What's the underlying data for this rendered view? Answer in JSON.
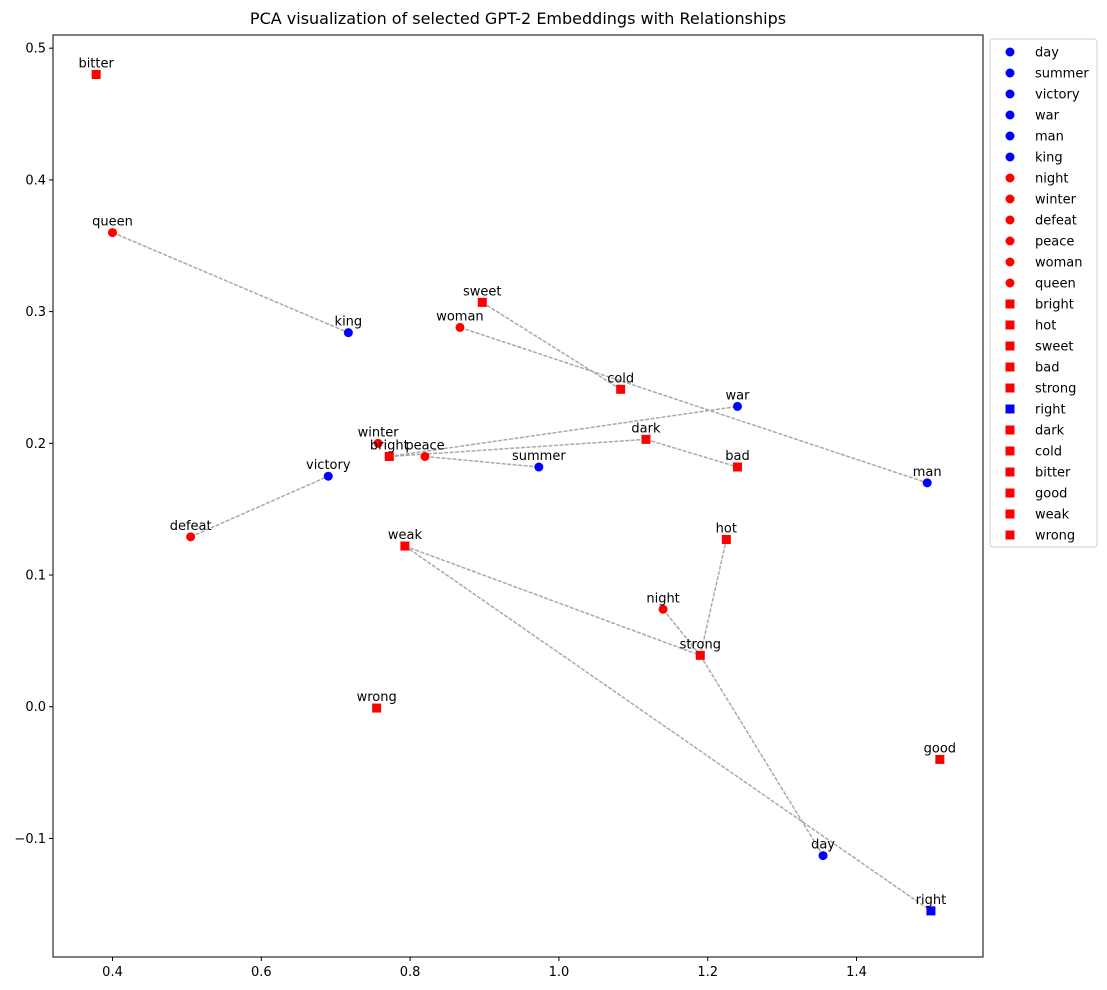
{
  "chart_data": {
    "type": "scatter",
    "title": "PCA visualization of selected GPT-2 Embeddings with Relationships",
    "xlabel": "",
    "ylabel": "",
    "xlim": [
      0.32,
      1.57
    ],
    "ylim": [
      -0.19,
      0.51
    ],
    "xticks": [
      0.4,
      0.6,
      0.8,
      1.0,
      1.2,
      1.4
    ],
    "xtick_labels": [
      "0.4",
      "0.6",
      "0.8",
      "1.0",
      "1.2",
      "1.4"
    ],
    "yticks": [
      -0.1,
      0.0,
      0.1,
      0.2,
      0.3,
      0.4,
      0.5
    ],
    "ytick_labels": [
      "−0.1",
      "0.0",
      "0.1",
      "0.2",
      "0.3",
      "0.4",
      "0.5"
    ],
    "grid": false,
    "legend_position": "outside-top-right",
    "colors": {
      "blue": "#0000ff",
      "red": "#ff0000",
      "line": "#a9a9a9"
    },
    "points": [
      {
        "word": "day",
        "x": 1.355,
        "y": -0.113,
        "color": "blue",
        "marker": "circle"
      },
      {
        "word": "summer",
        "x": 0.973,
        "y": 0.182,
        "color": "blue",
        "marker": "circle"
      },
      {
        "word": "victory",
        "x": 0.69,
        "y": 0.175,
        "color": "blue",
        "marker": "circle"
      },
      {
        "word": "war",
        "x": 1.24,
        "y": 0.228,
        "color": "blue",
        "marker": "circle"
      },
      {
        "word": "man",
        "x": 1.495,
        "y": 0.17,
        "color": "blue",
        "marker": "circle"
      },
      {
        "word": "king",
        "x": 0.717,
        "y": 0.284,
        "color": "blue",
        "marker": "circle"
      },
      {
        "word": "night",
        "x": 1.14,
        "y": 0.074,
        "color": "red",
        "marker": "circle"
      },
      {
        "word": "winter",
        "x": 0.757,
        "y": 0.2,
        "color": "red",
        "marker": "circle"
      },
      {
        "word": "defeat",
        "x": 0.505,
        "y": 0.129,
        "color": "red",
        "marker": "circle"
      },
      {
        "word": "peace",
        "x": 0.82,
        "y": 0.19,
        "color": "red",
        "marker": "circle"
      },
      {
        "word": "woman",
        "x": 0.867,
        "y": 0.288,
        "color": "red",
        "marker": "circle"
      },
      {
        "word": "queen",
        "x": 0.4,
        "y": 0.36,
        "color": "red",
        "marker": "circle"
      },
      {
        "word": "bright",
        "x": 0.772,
        "y": 0.19,
        "color": "red",
        "marker": "square"
      },
      {
        "word": "hot",
        "x": 1.225,
        "y": 0.127,
        "color": "red",
        "marker": "square"
      },
      {
        "word": "sweet",
        "x": 0.897,
        "y": 0.307,
        "color": "red",
        "marker": "square"
      },
      {
        "word": "bad",
        "x": 1.24,
        "y": 0.182,
        "color": "red",
        "marker": "square"
      },
      {
        "word": "strong",
        "x": 1.19,
        "y": 0.039,
        "color": "red",
        "marker": "square"
      },
      {
        "word": "right",
        "x": 1.5,
        "y": -0.155,
        "color": "blue",
        "marker": "square"
      },
      {
        "word": "dark",
        "x": 1.117,
        "y": 0.203,
        "color": "red",
        "marker": "square"
      },
      {
        "word": "cold",
        "x": 1.083,
        "y": 0.241,
        "color": "red",
        "marker": "square"
      },
      {
        "word": "bitter",
        "x": 0.378,
        "y": 0.48,
        "color": "red",
        "marker": "square"
      },
      {
        "word": "good",
        "x": 1.512,
        "y": -0.04,
        "color": "red",
        "marker": "square"
      },
      {
        "word": "weak",
        "x": 0.793,
        "y": 0.122,
        "color": "red",
        "marker": "square"
      },
      {
        "word": "wrong",
        "x": 0.755,
        "y": -0.001,
        "color": "red",
        "marker": "square"
      }
    ],
    "relationships": [
      [
        "queen",
        "king"
      ],
      [
        "woman",
        "man"
      ],
      [
        "sweet",
        "cold"
      ],
      [
        "bright",
        "war"
      ],
      [
        "bright",
        "dark"
      ],
      [
        "dark",
        "bad"
      ],
      [
        "peace",
        "summer"
      ],
      [
        "defeat",
        "victory"
      ],
      [
        "weak",
        "strong"
      ],
      [
        "weak",
        "right"
      ],
      [
        "night",
        "strong"
      ],
      [
        "strong",
        "day"
      ],
      [
        "strong",
        "hot"
      ]
    ],
    "legend": [
      {
        "label": "day",
        "color": "blue",
        "marker": "circle"
      },
      {
        "label": "summer",
        "color": "blue",
        "marker": "circle"
      },
      {
        "label": "victory",
        "color": "blue",
        "marker": "circle"
      },
      {
        "label": "war",
        "color": "blue",
        "marker": "circle"
      },
      {
        "label": "man",
        "color": "blue",
        "marker": "circle"
      },
      {
        "label": "king",
        "color": "blue",
        "marker": "circle"
      },
      {
        "label": "night",
        "color": "red",
        "marker": "circle"
      },
      {
        "label": "winter",
        "color": "red",
        "marker": "circle"
      },
      {
        "label": "defeat",
        "color": "red",
        "marker": "circle"
      },
      {
        "label": "peace",
        "color": "red",
        "marker": "circle"
      },
      {
        "label": "woman",
        "color": "red",
        "marker": "circle"
      },
      {
        "label": "queen",
        "color": "red",
        "marker": "circle"
      },
      {
        "label": "bright",
        "color": "red",
        "marker": "square"
      },
      {
        "label": "hot",
        "color": "red",
        "marker": "square"
      },
      {
        "label": "sweet",
        "color": "red",
        "marker": "square"
      },
      {
        "label": "bad",
        "color": "red",
        "marker": "square"
      },
      {
        "label": "strong",
        "color": "red",
        "marker": "square"
      },
      {
        "label": "right",
        "color": "blue",
        "marker": "square"
      },
      {
        "label": "dark",
        "color": "red",
        "marker": "square"
      },
      {
        "label": "cold",
        "color": "red",
        "marker": "square"
      },
      {
        "label": "bitter",
        "color": "red",
        "marker": "square"
      },
      {
        "label": "good",
        "color": "red",
        "marker": "square"
      },
      {
        "label": "weak",
        "color": "red",
        "marker": "square"
      },
      {
        "label": "wrong",
        "color": "red",
        "marker": "square"
      }
    ]
  }
}
